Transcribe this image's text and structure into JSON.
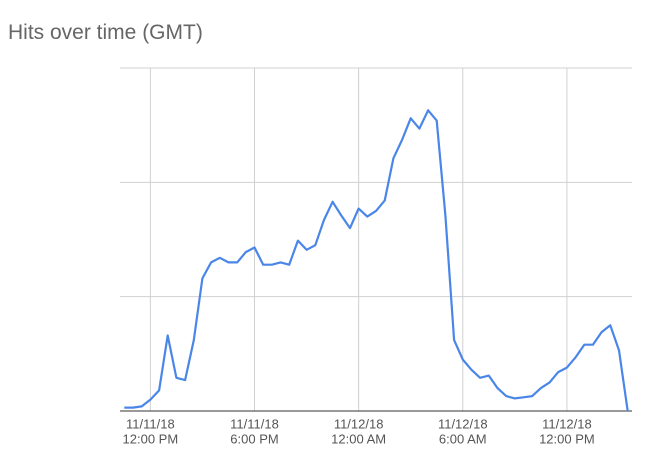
{
  "chart_data": {
    "type": "line",
    "title": "Hits over time (GMT)",
    "x": [
      "2018-11-11T10:30",
      "2018-11-11T11:00",
      "2018-11-11T11:30",
      "2018-11-11T12:00",
      "2018-11-11T12:30",
      "2018-11-11T13:00",
      "2018-11-11T13:30",
      "2018-11-11T14:00",
      "2018-11-11T14:30",
      "2018-11-11T15:00",
      "2018-11-11T15:30",
      "2018-11-11T16:00",
      "2018-11-11T16:30",
      "2018-11-11T17:00",
      "2018-11-11T17:30",
      "2018-11-11T18:00",
      "2018-11-11T18:30",
      "2018-11-11T19:00",
      "2018-11-11T19:30",
      "2018-11-11T20:00",
      "2018-11-11T20:30",
      "2018-11-11T21:00",
      "2018-11-11T21:30",
      "2018-11-11T22:00",
      "2018-11-11T22:30",
      "2018-11-11T23:00",
      "2018-11-11T23:30",
      "2018-11-12T00:00",
      "2018-11-12T00:30",
      "2018-11-12T01:00",
      "2018-11-12T01:30",
      "2018-11-12T02:00",
      "2018-11-12T02:30",
      "2018-11-12T03:00",
      "2018-11-12T03:30",
      "2018-11-12T04:00",
      "2018-11-12T04:30",
      "2018-11-12T05:00",
      "2018-11-12T05:30",
      "2018-11-12T06:00",
      "2018-11-12T06:30",
      "2018-11-12T07:00",
      "2018-11-12T07:30",
      "2018-11-12T08:00",
      "2018-11-12T08:30",
      "2018-11-12T09:00",
      "2018-11-12T09:30",
      "2018-11-12T10:00",
      "2018-11-12T10:30",
      "2018-11-12T11:00",
      "2018-11-12T11:30",
      "2018-11-12T12:00",
      "2018-11-12T12:30",
      "2018-11-12T13:00",
      "2018-11-12T13:30",
      "2018-11-12T14:00",
      "2018-11-12T14:30",
      "2018-11-12T15:00",
      "2018-11-12T15:30"
    ],
    "values": [
      0.03,
      0.03,
      0.04,
      0.1,
      0.18,
      0.66,
      0.29,
      0.27,
      0.62,
      1.16,
      1.3,
      1.34,
      1.3,
      1.3,
      1.39,
      1.43,
      1.28,
      1.28,
      1.3,
      1.28,
      1.49,
      1.41,
      1.45,
      1.67,
      1.83,
      1.71,
      1.6,
      1.77,
      1.7,
      1.75,
      1.84,
      2.21,
      2.37,
      2.56,
      2.47,
      2.63,
      2.54,
      1.71,
      0.62,
      0.45,
      0.36,
      0.29,
      0.31,
      0.2,
      0.13,
      0.11,
      0.12,
      0.13,
      0.2,
      0.25,
      0.34,
      0.38,
      0.47,
      0.58,
      0.58,
      0.69,
      0.75,
      0.53,
      0
    ],
    "color": "#4a86e8",
    "xlim": [
      "2018-11-11T10:15",
      "2018-11-12T15:45"
    ],
    "xticks": [
      {
        "value": "2018-11-11T12:00",
        "label": [
          "11/11/18",
          "12:00 PM"
        ]
      },
      {
        "value": "2018-11-11T18:00",
        "label": [
          "11/11/18",
          "6:00 PM"
        ]
      },
      {
        "value": "2018-11-12T00:00",
        "label": [
          "11/12/18",
          "12:00 AM"
        ]
      },
      {
        "value": "2018-11-12T06:00",
        "label": [
          "11/12/18",
          "6:00 AM"
        ]
      },
      {
        "value": "2018-11-12T12:00",
        "label": [
          "11/12/18",
          "12:00 PM"
        ]
      }
    ],
    "ylim": [
      0,
      3
    ],
    "ygrid": [
      1,
      2,
      3
    ],
    "grid": true
  }
}
